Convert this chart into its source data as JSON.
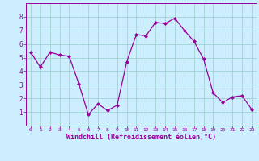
{
  "x": [
    0,
    1,
    2,
    3,
    4,
    5,
    6,
    7,
    8,
    9,
    10,
    11,
    12,
    13,
    14,
    15,
    16,
    17,
    18,
    19,
    20,
    21,
    22,
    23
  ],
  "y": [
    5.4,
    4.3,
    5.4,
    5.2,
    5.1,
    3.1,
    0.8,
    1.6,
    1.1,
    1.5,
    4.7,
    6.7,
    6.6,
    7.6,
    7.5,
    7.9,
    7.0,
    6.2,
    4.9,
    2.4,
    1.7,
    2.1,
    2.2,
    1.2
  ],
  "line_color": "#990099",
  "marker": "D",
  "marker_size": 2.0,
  "bg_color": "#cceeff",
  "grid_color": "#99cccc",
  "xlabel": "Windchill (Refroidissement éolien,°C)",
  "xlabel_color": "#990099",
  "tick_color": "#990099",
  "spine_color": "#990099",
  "ylim": [
    0,
    9
  ],
  "xlim": [
    -0.5,
    23.5
  ],
  "yticks": [
    1,
    2,
    3,
    4,
    5,
    6,
    7,
    8
  ],
  "xticks": [
    0,
    1,
    2,
    3,
    4,
    5,
    6,
    7,
    8,
    9,
    10,
    11,
    12,
    13,
    14,
    15,
    16,
    17,
    18,
    19,
    20,
    21,
    22,
    23
  ]
}
